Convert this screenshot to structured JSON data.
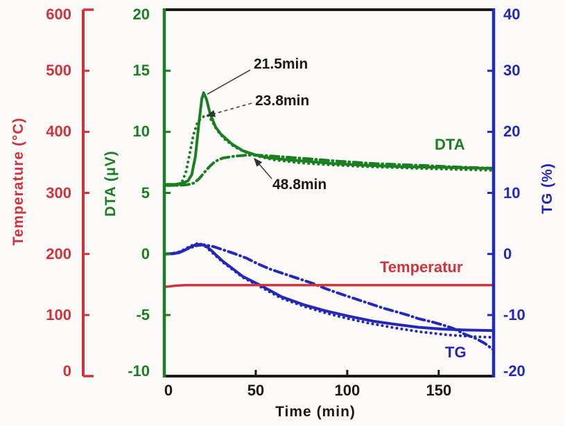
{
  "figure": {
    "background": "#fbfaf8"
  },
  "chart_data": {
    "type": "line",
    "title": "",
    "x_axis": {
      "label": "Time (min)",
      "range": [
        0,
        180
      ],
      "ticks": [
        0,
        50,
        100,
        150
      ],
      "color": "#1a1a1a"
    },
    "axes": {
      "temperature": {
        "label": "Temperature (°C)",
        "side": "far-left",
        "range": [
          0,
          600
        ],
        "ticks": [
          600,
          500,
          400,
          300,
          200,
          100,
          0
        ],
        "color": "#d2333a"
      },
      "dta": {
        "label": "DTA (μV)",
        "side": "left",
        "range": [
          -10,
          20
        ],
        "ticks": [
          20,
          15,
          10,
          5,
          0,
          -5,
          -10
        ],
        "color": "#1b7e20"
      },
      "tg": {
        "label": "TG (%)",
        "side": "right",
        "range": [
          -20,
          40
        ],
        "ticks": [
          40,
          30,
          20,
          10,
          0,
          -10,
          -20
        ],
        "color": "#2328ba"
      }
    },
    "curve_labels": {
      "dta": "DTA",
      "temperature": "Temperatur",
      "tg": "TG"
    },
    "series": [
      {
        "name": "DTA peak 21.5 min",
        "axis": "dta",
        "style": "solid",
        "color": "#1b7e20",
        "width": 4,
        "points": [
          [
            0,
            5.7
          ],
          [
            6,
            5.7
          ],
          [
            10,
            5.8
          ],
          [
            13,
            6.0
          ],
          [
            15,
            6.5
          ],
          [
            17,
            8.0
          ],
          [
            19,
            10.8
          ],
          [
            20.5,
            12.7
          ],
          [
            21.5,
            13.2
          ],
          [
            23,
            12.7
          ],
          [
            25,
            11.5
          ],
          [
            28,
            10.4
          ],
          [
            31,
            9.8
          ],
          [
            37,
            9.0
          ],
          [
            43,
            8.45
          ],
          [
            50,
            8.1
          ],
          [
            56,
            7.9
          ],
          [
            68,
            7.7
          ],
          [
            81,
            7.55
          ],
          [
            93,
            7.4
          ],
          [
            111,
            7.25
          ],
          [
            130,
            7.15
          ],
          [
            150,
            7.1
          ],
          [
            165,
            7.05
          ],
          [
            180,
            7.0
          ]
        ]
      },
      {
        "name": "DTA peak 23.8 min",
        "axis": "dta",
        "style": "dotted",
        "color": "#1b7e20",
        "width": 4,
        "points": [
          [
            0,
            5.6
          ],
          [
            5,
            5.6
          ],
          [
            8,
            5.7
          ],
          [
            10,
            6.0
          ],
          [
            12,
            6.8
          ],
          [
            14,
            8.3
          ],
          [
            16,
            9.8
          ],
          [
            18,
            10.7
          ],
          [
            20,
            11.1
          ],
          [
            22,
            11.3
          ],
          [
            23.8,
            11.35
          ],
          [
            26,
            10.9
          ],
          [
            29,
            10.1
          ],
          [
            33,
            9.4
          ],
          [
            38,
            8.8
          ],
          [
            44,
            8.35
          ],
          [
            50,
            8.05
          ],
          [
            60,
            7.7
          ],
          [
            75,
            7.45
          ],
          [
            90,
            7.3
          ],
          [
            110,
            7.15
          ],
          [
            140,
            7.0
          ],
          [
            160,
            6.92
          ],
          [
            180,
            6.85
          ]
        ]
      },
      {
        "name": "DTA peak 48.8 min",
        "axis": "dta",
        "style": "dashdot",
        "color": "#1b7e20",
        "width": 4,
        "points": [
          [
            0,
            5.62
          ],
          [
            8,
            5.62
          ],
          [
            13,
            5.68
          ],
          [
            16,
            5.8
          ],
          [
            19,
            6.15
          ],
          [
            22,
            6.7
          ],
          [
            25,
            7.2
          ],
          [
            28,
            7.6
          ],
          [
            32,
            7.85
          ],
          [
            38,
            8.0
          ],
          [
            44,
            8.08
          ],
          [
            48.8,
            8.1
          ],
          [
            55,
            8.06
          ],
          [
            65,
            7.95
          ],
          [
            80,
            7.78
          ],
          [
            95,
            7.6
          ],
          [
            115,
            7.4
          ],
          [
            140,
            7.25
          ],
          [
            160,
            7.12
          ],
          [
            180,
            7.02
          ]
        ]
      },
      {
        "name": "TG solid",
        "axis": "tg",
        "style": "solid",
        "color": "#2328ba",
        "width": 4,
        "points": [
          [
            0,
            0
          ],
          [
            5,
            0.05
          ],
          [
            8,
            0.2
          ],
          [
            11,
            0.6
          ],
          [
            14,
            1.1
          ],
          [
            17,
            1.5
          ],
          [
            20,
            1.6
          ],
          [
            23,
            1.25
          ],
          [
            26,
            0.5
          ],
          [
            28,
            -0.1
          ],
          [
            32,
            -1.2
          ],
          [
            36,
            -2.1
          ],
          [
            43,
            -3.7
          ],
          [
            53,
            -5.2
          ],
          [
            64,
            -7.0
          ],
          [
            76,
            -8.3
          ],
          [
            88,
            -9.3
          ],
          [
            101,
            -10.2
          ],
          [
            114,
            -11.0
          ],
          [
            126,
            -11.5
          ],
          [
            139,
            -12.0
          ],
          [
            152,
            -12.3
          ],
          [
            164,
            -12.45
          ],
          [
            180,
            -12.55
          ]
        ]
      },
      {
        "name": "TG dotted",
        "axis": "tg",
        "style": "dotted",
        "color": "#2328ba",
        "width": 4,
        "points": [
          [
            0,
            -0.05
          ],
          [
            4,
            0.05
          ],
          [
            8,
            0.35
          ],
          [
            11,
            0.75
          ],
          [
            14,
            1.25
          ],
          [
            17,
            1.65
          ],
          [
            19,
            1.75
          ],
          [
            22,
            1.35
          ],
          [
            25,
            0.55
          ],
          [
            28,
            -0.25
          ],
          [
            32,
            -1.35
          ],
          [
            36,
            -2.25
          ],
          [
            43,
            -3.85
          ],
          [
            53,
            -5.45
          ],
          [
            64,
            -7.25
          ],
          [
            76,
            -8.55
          ],
          [
            88,
            -9.65
          ],
          [
            100,
            -10.55
          ],
          [
            112,
            -11.35
          ],
          [
            125,
            -12.05
          ],
          [
            140,
            -12.75
          ],
          [
            155,
            -13.25
          ],
          [
            170,
            -13.55
          ],
          [
            180,
            -13.65
          ]
        ]
      },
      {
        "name": "TG dashdot",
        "axis": "tg",
        "style": "dashdot",
        "color": "#2328ba",
        "width": 4,
        "points": [
          [
            0,
            0
          ],
          [
            6,
            0.1
          ],
          [
            10,
            0.5
          ],
          [
            14,
            1.0
          ],
          [
            18,
            1.4
          ],
          [
            22,
            1.5
          ],
          [
            27,
            1.2
          ],
          [
            32,
            0.7
          ],
          [
            38,
            0.1
          ],
          [
            45,
            -0.7
          ],
          [
            51,
            -1.6
          ],
          [
            58,
            -2.5
          ],
          [
            64,
            -3.1
          ],
          [
            70,
            -3.7
          ],
          [
            76,
            -4.3
          ],
          [
            82,
            -4.9
          ],
          [
            88,
            -5.65
          ],
          [
            94,
            -6.3
          ],
          [
            101,
            -7.0
          ],
          [
            108,
            -7.7
          ],
          [
            114,
            -8.3
          ],
          [
            120,
            -8.9
          ],
          [
            126,
            -9.4
          ],
          [
            133,
            -10.0
          ],
          [
            139,
            -10.6
          ],
          [
            146,
            -11.1
          ],
          [
            152,
            -11.6
          ],
          [
            158,
            -12.2
          ],
          [
            164,
            -13.1
          ],
          [
            170,
            -13.8
          ],
          [
            175,
            -14.6
          ],
          [
            180,
            -15.7
          ]
        ]
      },
      {
        "name": "Temperature",
        "axis": "temperature",
        "style": "solid",
        "color": "#d2333a",
        "width": 3.5,
        "points": [
          [
            0,
            146
          ],
          [
            6,
            148
          ],
          [
            12,
            149
          ],
          [
            180,
            149
          ]
        ]
      }
    ],
    "annotations": [
      {
        "label": "21.5min",
        "text_x": 366,
        "text_y": 81,
        "line": [
          361,
          101,
          299,
          136
        ],
        "dashed": false,
        "arrow": false
      },
      {
        "label": "23.8min",
        "text_x": 368,
        "text_y": 134,
        "line": [
          363,
          149,
          299,
          167
        ],
        "dashed": true,
        "arrow": true
      },
      {
        "label": "48.8min",
        "text_x": 393,
        "text_y": 255,
        "line": [
          392,
          258,
          367,
          229
        ],
        "dashed": false,
        "arrow": true
      }
    ]
  }
}
